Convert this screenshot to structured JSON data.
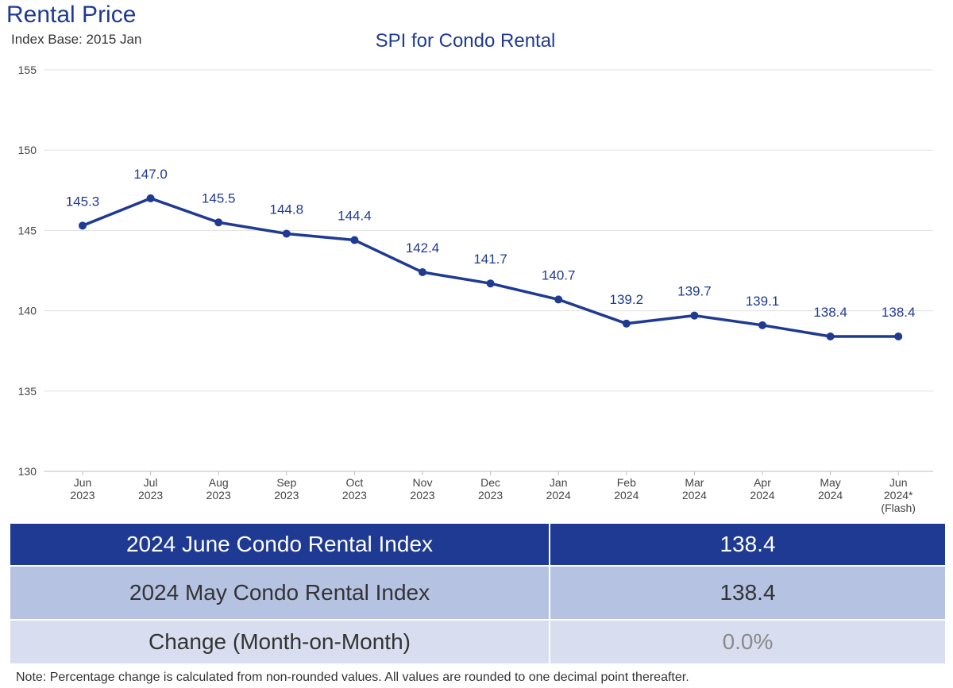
{
  "header": {
    "title": "Rental Price",
    "subtitle": "Index Base: 2015 Jan"
  },
  "colors": {
    "primary": "#1f3a93",
    "row_mid": "#b5c2e1",
    "row_light": "#d8deef",
    "grid": "#e0e0e0"
  },
  "chart_data": {
    "type": "line",
    "title": "SPI for Condo Rental",
    "categories": [
      [
        "Jun",
        "2023"
      ],
      [
        "Jul",
        "2023"
      ],
      [
        "Aug",
        "2023"
      ],
      [
        "Sep",
        "2023"
      ],
      [
        "Oct",
        "2023"
      ],
      [
        "Nov",
        "2023"
      ],
      [
        "Dec",
        "2023"
      ],
      [
        "Jan",
        "2024"
      ],
      [
        "Feb",
        "2024"
      ],
      [
        "Mar",
        "2024"
      ],
      [
        "Apr",
        "2024"
      ],
      [
        "May",
        "2024"
      ],
      [
        "Jun",
        "2024*",
        "(Flash)"
      ]
    ],
    "series": [
      {
        "values": [
          145.3,
          147.0,
          145.5,
          144.8,
          144.4,
          142.4,
          141.7,
          140.7,
          139.2,
          139.7,
          139.1,
          138.4,
          138.4
        ]
      }
    ],
    "data_labels": [
      "145.3",
      "147.0",
      "145.5",
      "144.8",
      "144.4",
      "142.4",
      "141.7",
      "140.7",
      "139.2",
      "139.7",
      "139.1",
      "138.4",
      "138.4"
    ],
    "yticks": [
      130,
      135,
      140,
      145,
      150,
      155
    ],
    "ylim": [
      130,
      155
    ],
    "grid": true,
    "legend": "none"
  },
  "summary_table": {
    "rows": [
      {
        "label": "2024 June Condo Rental Index",
        "value": "138.4"
      },
      {
        "label": "2024 May Condo Rental Index",
        "value": "138.4"
      },
      {
        "label": "Change (Month-on-Month)",
        "value": "0.0%"
      }
    ]
  },
  "note": "Note: Percentage change is calculated from non-rounded values.  All values are rounded to one decimal point thereafter."
}
